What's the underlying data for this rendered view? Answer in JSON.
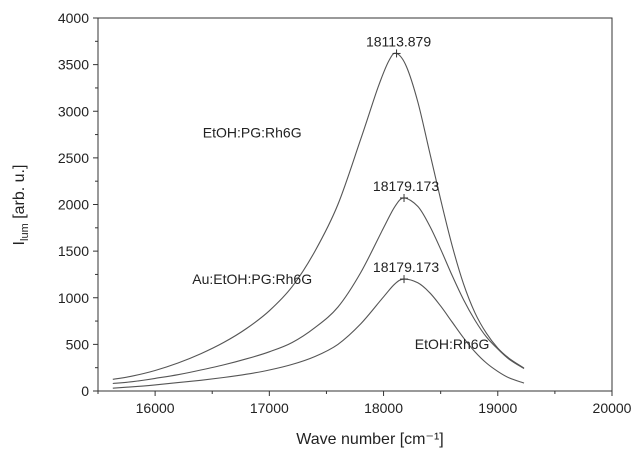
{
  "chart_data": {
    "type": "line",
    "title": "",
    "xlabel": "Wave number",
    "xlabel_unit": "[cm⁻¹]",
    "ylabel": "I",
    "ylabel_sub": "lum",
    "ylabel_unit": " [arb. u.]",
    "xlim": [
      15500,
      20000
    ],
    "ylim": [
      0,
      4000
    ],
    "x_ticks": [
      16000,
      17000,
      18000,
      19000,
      20000
    ],
    "x_tick_labels": [
      "16000",
      "17000",
      "18000",
      "19000",
      "20000"
    ],
    "y_ticks": [
      0,
      500,
      1000,
      1500,
      2000,
      2500,
      3000,
      3500,
      4000
    ],
    "y_tick_labels": [
      "0",
      "500",
      "1000",
      "1500",
      "2000",
      "2500",
      "3000",
      "3500",
      "4000"
    ],
    "grid": false,
    "legend": "none",
    "series": [
      {
        "name": "EtOH:PG:Rh6G",
        "x": [
          15630,
          15800,
          16000,
          16200,
          16400,
          16600,
          16800,
          17000,
          17200,
          17400,
          17600,
          17800,
          17950,
          18050,
          18113.879,
          18200,
          18300,
          18400,
          18500,
          18600,
          18700,
          18800,
          18900,
          19000,
          19100,
          19230
        ],
        "y": [
          125,
          160,
          220,
          300,
          400,
          520,
          670,
          860,
          1120,
          1500,
          2000,
          2700,
          3250,
          3550,
          3620,
          3480,
          3100,
          2580,
          2050,
          1560,
          1150,
          840,
          620,
          460,
          350,
          245
        ]
      },
      {
        "name": "Au:EtOH:PG:Rh6G",
        "x": [
          15630,
          15800,
          16000,
          16200,
          16400,
          16600,
          16800,
          17000,
          17200,
          17400,
          17600,
          17800,
          18000,
          18100,
          18179.173,
          18300,
          18400,
          18500,
          18600,
          18700,
          18800,
          18900,
          19000,
          19100,
          19230
        ],
        "y": [
          80,
          100,
          135,
          175,
          225,
          280,
          345,
          420,
          520,
          680,
          900,
          1270,
          1750,
          1980,
          2070,
          1980,
          1780,
          1520,
          1240,
          980,
          760,
          580,
          450,
          340,
          240
        ]
      },
      {
        "name": "EtOH:Rh6G",
        "x": [
          15630,
          15800,
          16000,
          16200,
          16400,
          16600,
          16800,
          17000,
          17200,
          17400,
          17600,
          17800,
          18000,
          18100,
          18179.173,
          18300,
          18400,
          18500,
          18600,
          18700,
          18800,
          18900,
          19000,
          19100,
          19230
        ],
        "y": [
          30,
          45,
          65,
          90,
          115,
          145,
          180,
          225,
          285,
          370,
          500,
          720,
          1010,
          1150,
          1200,
          1160,
          1060,
          910,
          740,
          570,
          420,
          300,
          210,
          140,
          85
        ]
      }
    ],
    "annotations": [
      {
        "text": "18113.879",
        "x": 18113.879,
        "y": 3620,
        "marker": "+"
      },
      {
        "text": "18179.173",
        "x": 18179.173,
        "y": 2070,
        "marker": "+"
      },
      {
        "text": "18179.173",
        "x": 18179.173,
        "y": 1200,
        "marker": "+"
      }
    ]
  }
}
